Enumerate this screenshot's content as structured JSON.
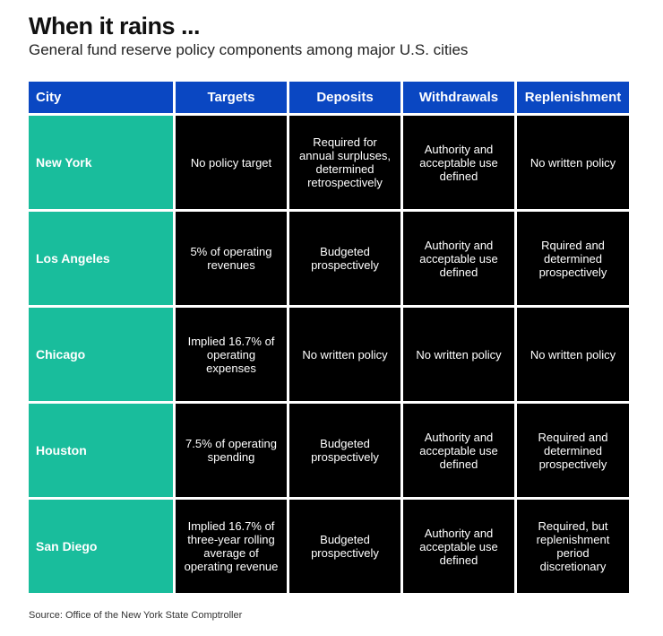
{
  "title": "When it rains ...",
  "subtitle": "General fund reserve policy components among major U.S. cities",
  "source": "Source: Office of the New York State Comptroller",
  "colors": {
    "header": "#0a47c2",
    "city": "#19bd9c",
    "cell": "#000000"
  },
  "chart_data": {
    "type": "table",
    "columns": [
      "City",
      "Targets",
      "Deposits",
      "Withdrawals",
      "Replenishment"
    ],
    "rows": [
      [
        "New York",
        "No policy target",
        "Required for annual surpluses, determined retrospectively",
        "Authority and acceptable use defined",
        "No written policy"
      ],
      [
        "Los Angeles",
        "5% of operating revenues",
        "Budgeted prospectively",
        "Authority and acceptable use defined",
        "Rquired and determined prospectively"
      ],
      [
        "Chicago",
        "Implied 16.7% of operating expenses",
        "No written policy",
        "No written policy",
        "No written policy"
      ],
      [
        "Houston",
        "7.5% of operating spending",
        "Budgeted prospectively",
        "Authority and acceptable use defined",
        "Required and determined prospectively"
      ],
      [
        "San Diego",
        "Implied 16.7% of three-year rolling average of operating revenue",
        "Budgeted prospectively",
        "Authority and acceptable use defined",
        "Required, but replenishment period discretionary"
      ]
    ]
  }
}
